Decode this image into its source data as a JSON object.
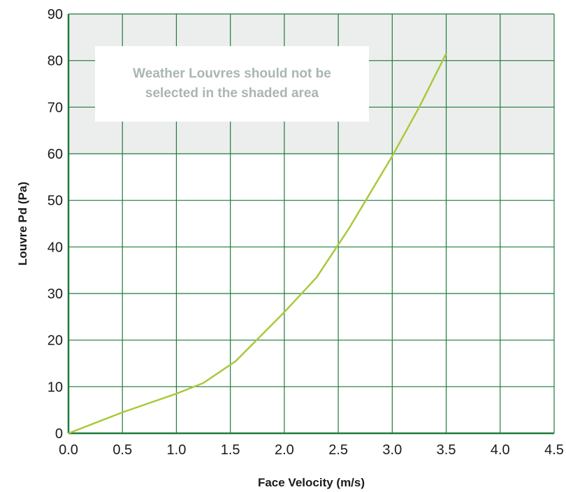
{
  "chart_data": {
    "type": "line",
    "title": "",
    "xlabel": "Face Velocity (m/s)",
    "ylabel": "Louvre Pd (Pa)",
    "xlim": [
      0,
      4.5
    ],
    "ylim": [
      0,
      90
    ],
    "x_ticks": [
      "0.0",
      "0.5",
      "1.0",
      "1.5",
      "2.0",
      "2.5",
      "3.0",
      "3.5",
      "4.0",
      "4.5"
    ],
    "y_ticks": [
      "0",
      "10",
      "20",
      "30",
      "40",
      "50",
      "60",
      "70",
      "80",
      "90"
    ],
    "grid": true,
    "shaded_region": {
      "y_from": 60,
      "y_to": 90
    },
    "annotation": {
      "line1": "Weather Louvres should not be",
      "line2": "selected in the shaded area"
    },
    "series": [
      {
        "x": [
          0.0,
          0.5,
          1.0,
          1.25,
          1.55,
          2.0,
          2.3,
          2.6,
          3.0,
          3.25,
          3.5
        ],
        "y": [
          0,
          4.5,
          8.5,
          10.8,
          15.5,
          26,
          33.5,
          44,
          59.5,
          70,
          81.5
        ]
      }
    ],
    "colors": {
      "grid": "#1e7a3c",
      "axis": "#1e7a3c",
      "shade": "#eceeed",
      "line": "#a8c93a",
      "annotation_bg": "#ffffff",
      "annotation_text": "#aab6b0"
    }
  }
}
